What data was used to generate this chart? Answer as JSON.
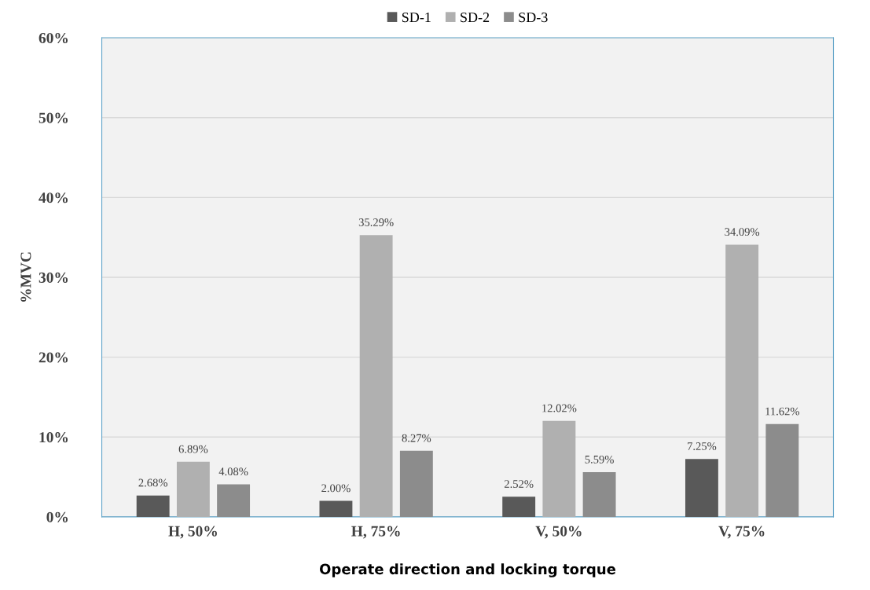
{
  "chart_data": {
    "type": "bar",
    "ylabel": "%MVC",
    "xlabel": "Operate direction and locking torque",
    "categories": [
      "H, 50%",
      "H, 75%",
      "V, 50%",
      "V, 75%"
    ],
    "series": [
      {
        "name": "SD-1",
        "color": "#595959",
        "values": [
          2.68,
          2.0,
          2.52,
          7.25
        ],
        "value_labels": [
          "2.68%",
          "2.00%",
          "2.52%",
          "7.25%"
        ]
      },
      {
        "name": "SD-2",
        "color": "#b0b0b0",
        "values": [
          6.89,
          35.29,
          12.02,
          34.09
        ],
        "value_labels": [
          "6.89%",
          "35.29%",
          "12.02%",
          "34.09%"
        ]
      },
      {
        "name": "SD-3",
        "color": "#8c8c8c",
        "values": [
          4.08,
          8.27,
          5.59,
          11.62
        ],
        "value_labels": [
          "4.08%",
          "8.27%",
          "5.59%",
          "11.62%"
        ]
      }
    ],
    "ylim": [
      0,
      60
    ],
    "yticks": [
      {
        "value": 0,
        "label": "0%"
      },
      {
        "value": 10,
        "label": "10%"
      },
      {
        "value": 20,
        "label": "20%"
      },
      {
        "value": 30,
        "label": "30%"
      },
      {
        "value": 40,
        "label": "40%"
      },
      {
        "value": 50,
        "label": "50%"
      },
      {
        "value": 60,
        "label": "60%"
      }
    ],
    "grid": "y",
    "legend": "top"
  }
}
